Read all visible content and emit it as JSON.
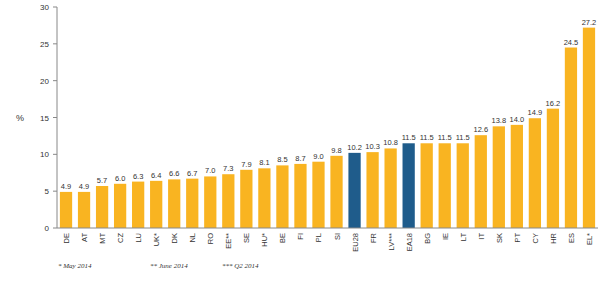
{
  "chart_data": {
    "type": "bar",
    "y_label": "%",
    "categories": [
      "DE",
      "AT",
      "MT",
      "CZ",
      "LU",
      "UK*",
      "DK",
      "NL",
      "RO",
      "EE**",
      "SE",
      "HU*",
      "BE",
      "FI",
      "PL",
      "SI",
      "EU28",
      "FR",
      "LV***",
      "EA18",
      "BG",
      "IE",
      "LT",
      "IT",
      "SK",
      "PT",
      "CY",
      "HR",
      "ES",
      "EL*"
    ],
    "values": [
      4.9,
      4.9,
      5.7,
      6.0,
      6.3,
      6.4,
      6.6,
      6.7,
      7.0,
      7.3,
      7.9,
      8.1,
      8.5,
      8.7,
      9.0,
      9.8,
      10.2,
      10.3,
      10.8,
      11.5,
      11.5,
      11.5,
      11.5,
      12.6,
      13.8,
      14.0,
      14.9,
      16.2,
      24.5,
      27.2
    ],
    "value_labels": [
      "4.9",
      "4.9",
      "5.7",
      "6.0",
      "6.3",
      "6.4",
      "6.6",
      "6.7",
      "7.0",
      "7.3",
      "7.9",
      "8.1",
      "8.5",
      "8.7",
      "9.0",
      "9.8",
      "10.2",
      "10.3",
      "10.8",
      "11.5",
      "11.5",
      "11.5",
      "11.5",
      "12.6",
      "13.8",
      "14.0",
      "14.9",
      "16.2",
      "24.5",
      "27.2"
    ],
    "colors": [
      "#f9b421",
      "#f9b421",
      "#f9b421",
      "#f9b421",
      "#f9b421",
      "#f9b421",
      "#f9b421",
      "#f9b421",
      "#f9b421",
      "#f9b421",
      "#f9b421",
      "#f9b421",
      "#f9b421",
      "#f9b421",
      "#f9b421",
      "#f9b421",
      "#1f5c8b",
      "#f9b421",
      "#f9b421",
      "#1f5c8b",
      "#f9b421",
      "#f9b421",
      "#f9b421",
      "#f9b421",
      "#f9b421",
      "#f9b421",
      "#f9b421",
      "#f9b421",
      "#f9b421",
      "#f9b421"
    ],
    "ylim": [
      0,
      30
    ],
    "yticks": [
      0,
      5,
      10,
      15,
      20,
      25,
      30
    ],
    "grid": false,
    "data_labels": true,
    "annotations": [
      "* May 2014",
      "** June 2014",
      "*** Q2 2014"
    ]
  }
}
